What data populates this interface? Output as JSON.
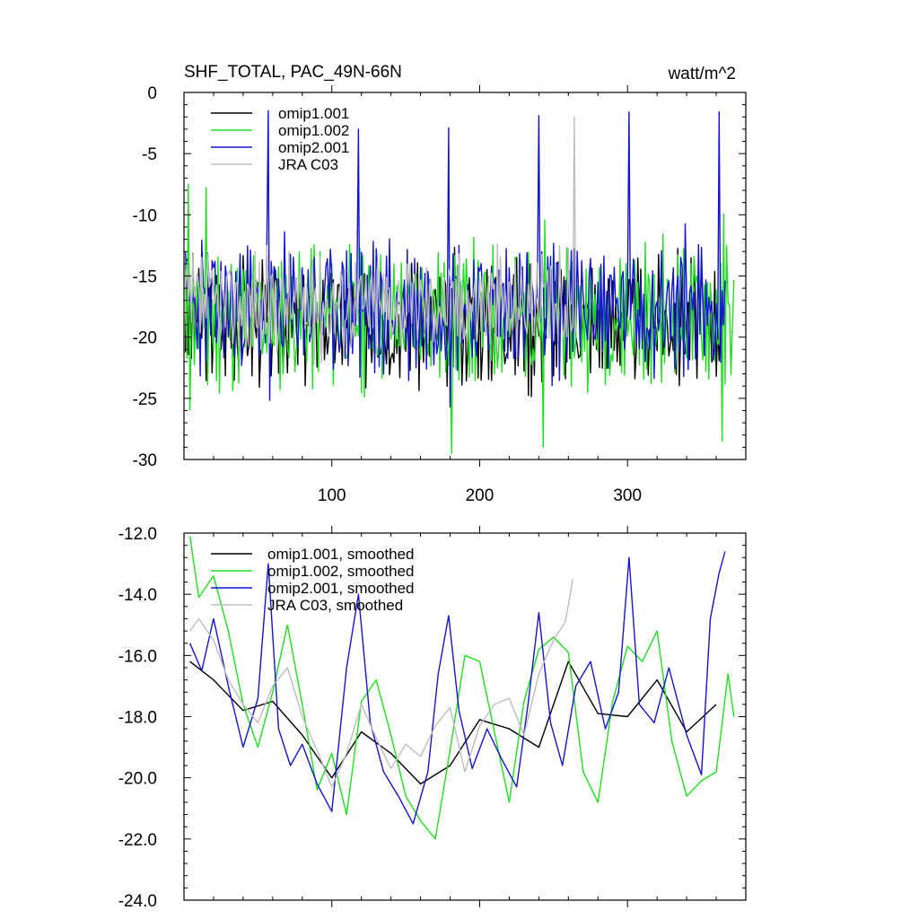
{
  "colors": {
    "omip1_001": "#000000",
    "omip1_002": "#1fe01f",
    "omip2_001": "#1414d2",
    "jra_c03": "#bdbdbd",
    "axis": "#000000"
  },
  "chart_data": [
    {
      "type": "line",
      "title": "SHF_TOTAL, PAC_49N-66N",
      "units": "watt/m^2",
      "xlim": [
        0,
        380
      ],
      "ylim": [
        -30,
        0
      ],
      "xticks": [
        100,
        200,
        300
      ],
      "xtick_labels": [
        "100",
        "200",
        "300"
      ],
      "yticks": [
        0,
        -5,
        -10,
        -15,
        -20,
        -25,
        -30
      ],
      "ytick_labels": [
        "0",
        "-5",
        "-10",
        "-15",
        "-20",
        "-25",
        "-30"
      ],
      "legend": [
        "omip1.001",
        "omip1.002",
        "omip2.001",
        "JRA C03"
      ],
      "series": [
        {
          "name": "omip1.001",
          "color_key": "omip1_001",
          "x_start": 1,
          "x_end": 366,
          "mean": -18.6,
          "amp": 5.5,
          "spikes": [],
          "seed": 3
        },
        {
          "name": "omip1.002",
          "color_key": "omip1_002",
          "x_start": 1,
          "x_end": 372,
          "mean": -18.2,
          "amp": 6.0,
          "spikes": [
            [
              3,
              -7.5
            ],
            [
              15,
              -7.8
            ],
            [
              181,
              -29.5
            ],
            [
              243,
              -29.0
            ],
            [
              364,
              -28.5
            ]
          ],
          "seed": 11
        },
        {
          "name": "omip2.001",
          "color_key": "omip2_001",
          "x_start": 1,
          "x_end": 366,
          "mean": -17.5,
          "amp": 6.0,
          "spikes": [
            [
              57,
              -1.5
            ],
            [
              118,
              -3.0
            ],
            [
              179,
              -2.9
            ],
            [
              240,
              -1.9
            ],
            [
              301,
              -1.6
            ],
            [
              362,
              -1.6
            ]
          ],
          "seed": 23
        },
        {
          "name": "JRA C03",
          "color_key": "jra_c03",
          "x_start": 1,
          "x_end": 265,
          "mean": -17.2,
          "amp": 4.5,
          "spikes": [
            [
              264,
              -2.0
            ]
          ],
          "seed": 37
        }
      ]
    },
    {
      "type": "line",
      "title": "",
      "xlim": [
        0,
        380
      ],
      "ylim": [
        -24,
        -12
      ],
      "xticks": [
        100,
        200,
        300
      ],
      "yticks": [
        -12,
        -14,
        -16,
        -18,
        -20,
        -22,
        -24
      ],
      "ytick_labels": [
        "-12.0",
        "-14.0",
        "-16.0",
        "-18.0",
        "-20.0",
        "-22.0",
        "-24.0"
      ],
      "legend": [
        "omip1.001, smoothed",
        "omip1.002, smoothed",
        "omip2.001, smoothed",
        "JRA C03, smoothed"
      ],
      "series": [
        {
          "name": "omip1.001, smoothed",
          "color_key": "omip1_001",
          "x": [
            4,
            20,
            40,
            60,
            80,
            100,
            120,
            140,
            160,
            180,
            200,
            220,
            240,
            260,
            280,
            300,
            320,
            340,
            360
          ],
          "y": [
            -16.2,
            -16.8,
            -17.8,
            -17.5,
            -18.6,
            -20.0,
            -18.5,
            -19.2,
            -20.2,
            -19.6,
            -18.1,
            -18.4,
            -19.0,
            -16.2,
            -17.9,
            -18.0,
            -16.8,
            -18.5,
            -17.6
          ]
        },
        {
          "name": "omip1.002, smoothed",
          "color_key": "omip1_002",
          "x": [
            4,
            10,
            20,
            30,
            40,
            50,
            60,
            70,
            80,
            90,
            100,
            110,
            120,
            130,
            140,
            150,
            160,
            170,
            180,
            190,
            200,
            210,
            220,
            230,
            240,
            250,
            260,
            270,
            280,
            290,
            300,
            310,
            320,
            330,
            340,
            350,
            360,
            368,
            372
          ],
          "y": [
            -12.1,
            -14.1,
            -13.4,
            -15.2,
            -17.6,
            -19.0,
            -17.2,
            -15.0,
            -17.6,
            -20.4,
            -19.2,
            -21.2,
            -17.5,
            -16.8,
            -18.6,
            -20.6,
            -21.4,
            -22.0,
            -19.1,
            -16.0,
            -16.2,
            -18.5,
            -20.8,
            -17.5,
            -15.8,
            -15.4,
            -15.9,
            -19.8,
            -20.8,
            -17.5,
            -15.7,
            -16.2,
            -15.2,
            -18.8,
            -20.6,
            -20.1,
            -19.8,
            -16.6,
            -18.0
          ]
        },
        {
          "name": "omip2.001, smoothed",
          "color_key": "omip2_001",
          "x": [
            4,
            12,
            20,
            30,
            40,
            50,
            57,
            64,
            72,
            80,
            90,
            100,
            110,
            118,
            126,
            135,
            145,
            155,
            165,
            172,
            179,
            186,
            195,
            205,
            215,
            225,
            233,
            240,
            248,
            256,
            265,
            275,
            285,
            294,
            301,
            308,
            318,
            328,
            340,
            350,
            356,
            362,
            366
          ],
          "y": [
            -15.6,
            -16.5,
            -14.8,
            -17.0,
            -19.0,
            -17.4,
            -13.0,
            -18.4,
            -19.6,
            -18.9,
            -20.2,
            -21.1,
            -16.4,
            -14.0,
            -18.2,
            -19.8,
            -20.6,
            -21.5,
            -19.8,
            -16.6,
            -14.7,
            -17.8,
            -19.7,
            -18.4,
            -19.4,
            -20.3,
            -17.5,
            -14.6,
            -18.2,
            -19.6,
            -17.0,
            -16.2,
            -18.4,
            -17.2,
            -12.8,
            -17.6,
            -18.2,
            -16.4,
            -18.6,
            -19.9,
            -14.8,
            -13.3,
            -12.6
          ]
        },
        {
          "name": "JRA C03, smoothed",
          "color_key": "jra_c03",
          "x": [
            4,
            10,
            20,
            30,
            40,
            50,
            60,
            70,
            80,
            90,
            100,
            110,
            120,
            130,
            140,
            150,
            160,
            170,
            180,
            190,
            200,
            210,
            220,
            230,
            240,
            250,
            258,
            263
          ],
          "y": [
            -15.2,
            -14.8,
            -15.5,
            -16.8,
            -17.6,
            -18.2,
            -17.0,
            -16.4,
            -18.0,
            -19.1,
            -20.3,
            -19.2,
            -17.6,
            -18.7,
            -19.7,
            -18.9,
            -19.3,
            -18.3,
            -17.7,
            -19.8,
            -18.3,
            -17.6,
            -17.4,
            -18.6,
            -16.6,
            -15.5,
            -14.9,
            -13.5
          ]
        }
      ]
    }
  ]
}
